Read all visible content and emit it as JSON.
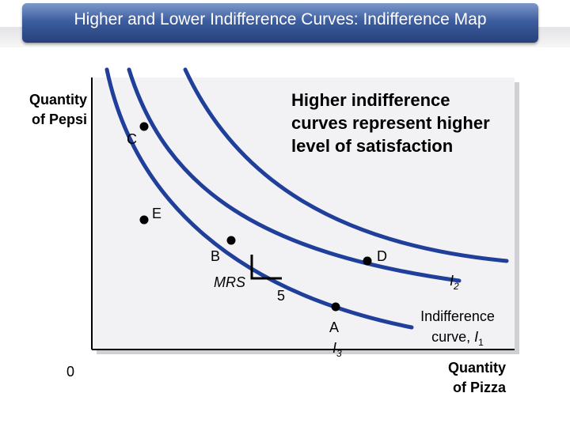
{
  "title": "Higher and Lower Indifference Curves: Indifference Map",
  "colors": {
    "curve": "#1f3f9a",
    "point": "#000000",
    "title_bg": "#3c5d9f",
    "title_text": "#ffffff"
  },
  "axes": {
    "y_title_line1": "Quantity",
    "y_title_line2": "of Pepsi",
    "x_title_line1": "Quantity",
    "x_title_line2": "of Pizza",
    "origin": "0"
  },
  "callout": {
    "line1": "Higher indifference",
    "line2": "curves represent higher",
    "line3": "level of satisfaction"
  },
  "points": {
    "A": "A",
    "B": "B",
    "C": "C",
    "D": "D",
    "E": "E"
  },
  "mrs": {
    "label": "MRS",
    "run": "5"
  },
  "curves": {
    "i1_label_line1": "Indifference",
    "i1_label_line2_prefix": "curve, ",
    "i1_symbol": "I",
    "i1_sub": "1",
    "i2_symbol": "I",
    "i2_sub": "2",
    "i3_symbol": "I",
    "i3_sub": "3"
  }
}
